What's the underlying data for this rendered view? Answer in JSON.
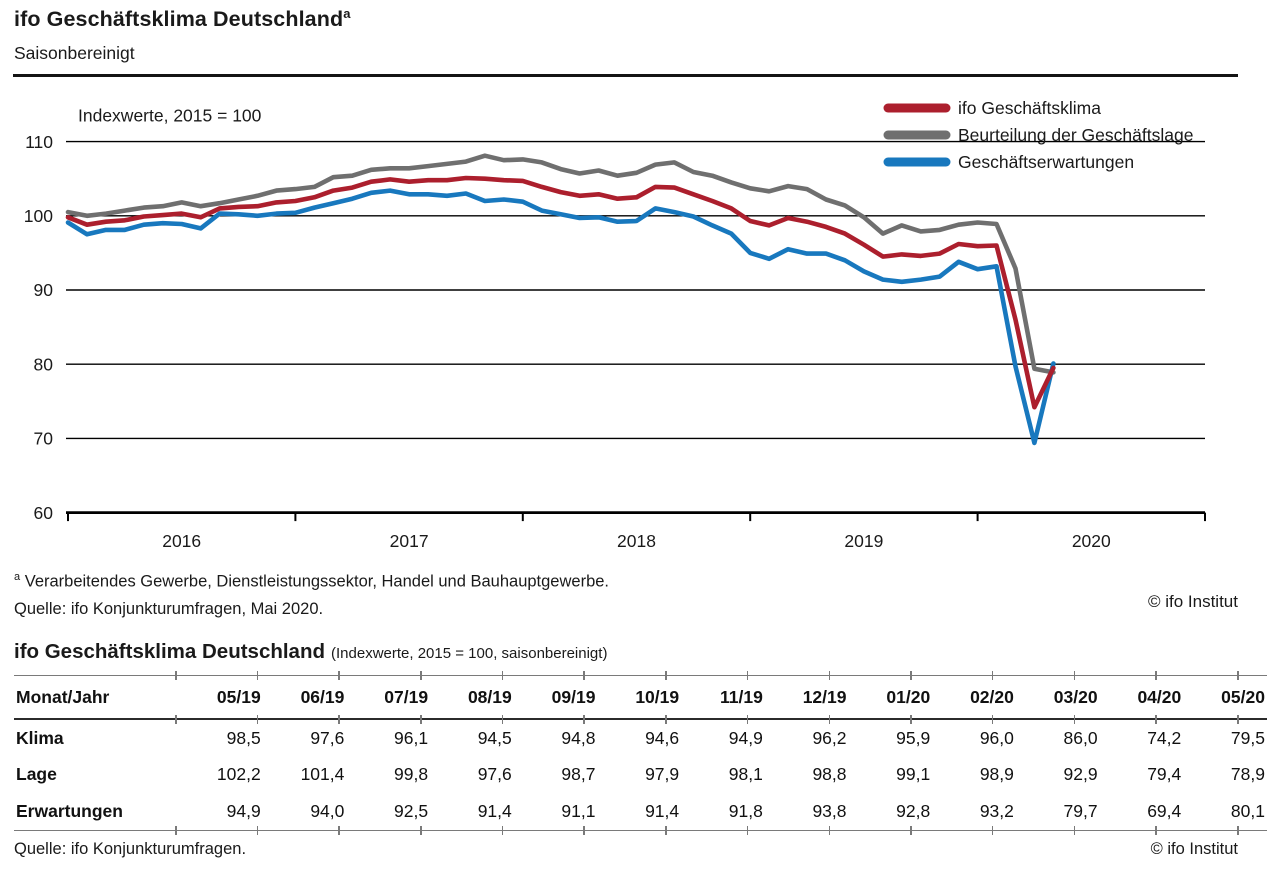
{
  "header": {
    "title": "ifo Geschäftsklima Deutschland",
    "title_superscript": "a",
    "subtitle": "Saisonbereinigt"
  },
  "chart": {
    "note": "Indexwerte, 2015 = 100",
    "y_ticks": [
      110,
      100,
      90,
      80,
      70,
      60
    ],
    "x_year_labels": [
      "2016",
      "2017",
      "2018",
      "2019",
      "2020"
    ],
    "legend": [
      {
        "label": "ifo Geschäftsklima",
        "color": "#ac1f2d"
      },
      {
        "label": "Beurteilung der Geschäftslage",
        "color": "#6f6f6f"
      },
      {
        "label": "Geschäftserwartungen",
        "color": "#1878be"
      }
    ],
    "axis_color": "#000000",
    "footnote_marker": "a",
    "footnote_text": "Verarbeitendes Gewerbe, Dienstleistungssektor, Handel und Bauhauptgewerbe.",
    "source": "Quelle: ifo Konjunkturumfragen, Mai 2020.",
    "copyright": "© ifo Institut"
  },
  "chart_data": {
    "type": "line",
    "title": "ifo Geschäftsklima Deutschland, saisonbereinigt",
    "ylabel": "Indexwerte, 2015 = 100",
    "ylim": [
      60,
      112
    ],
    "grid": "horizontal",
    "legend_position": "top-right",
    "x": [
      "2016-01",
      "2016-02",
      "2016-03",
      "2016-04",
      "2016-05",
      "2016-06",
      "2016-07",
      "2016-08",
      "2016-09",
      "2016-10",
      "2016-11",
      "2016-12",
      "2017-01",
      "2017-02",
      "2017-03",
      "2017-04",
      "2017-05",
      "2017-06",
      "2017-07",
      "2017-08",
      "2017-09",
      "2017-10",
      "2017-11",
      "2017-12",
      "2018-01",
      "2018-02",
      "2018-03",
      "2018-04",
      "2018-05",
      "2018-06",
      "2018-07",
      "2018-08",
      "2018-09",
      "2018-10",
      "2018-11",
      "2018-12",
      "2019-01",
      "2019-02",
      "2019-03",
      "2019-04",
      "2019-05",
      "2019-06",
      "2019-07",
      "2019-08",
      "2019-09",
      "2019-10",
      "2019-11",
      "2019-12",
      "2020-01",
      "2020-02",
      "2020-03",
      "2020-04",
      "2020-05"
    ],
    "series": [
      {
        "name": "ifo Geschäftsklima",
        "color": "#ac1f2d",
        "values": [
          99.8,
          98.8,
          99.2,
          99.4,
          99.9,
          100.1,
          100.3,
          99.8,
          101.0,
          101.2,
          101.3,
          101.8,
          102.0,
          102.5,
          103.4,
          103.8,
          104.6,
          104.9,
          104.6,
          104.8,
          104.8,
          105.1,
          105.0,
          104.8,
          104.7,
          103.9,
          103.2,
          102.7,
          102.9,
          102.3,
          102.5,
          103.9,
          103.8,
          102.9,
          102.0,
          101.0,
          99.3,
          98.7,
          99.7,
          99.2,
          98.5,
          97.6,
          96.1,
          94.5,
          94.8,
          94.6,
          94.9,
          96.2,
          95.9,
          96.0,
          86.0,
          74.2,
          79.5
        ]
      },
      {
        "name": "Beurteilung der Geschäftslage",
        "color": "#6f6f6f",
        "values": [
          100.5,
          100.0,
          100.3,
          100.7,
          101.1,
          101.3,
          101.8,
          101.3,
          101.7,
          102.2,
          102.7,
          103.4,
          103.6,
          103.9,
          105.2,
          105.4,
          106.2,
          106.4,
          106.4,
          106.7,
          107.0,
          107.3,
          108.1,
          107.5,
          107.6,
          107.2,
          106.3,
          105.7,
          106.1,
          105.4,
          105.8,
          106.9,
          107.2,
          105.9,
          105.4,
          104.5,
          103.7,
          103.3,
          104.0,
          103.6,
          102.2,
          101.4,
          99.8,
          97.6,
          98.7,
          97.9,
          98.1,
          98.8,
          99.1,
          98.9,
          92.9,
          79.4,
          78.9
        ]
      },
      {
        "name": "Geschäftserwartungen",
        "color": "#1878be",
        "values": [
          99.1,
          97.5,
          98.1,
          98.1,
          98.8,
          99.0,
          98.9,
          98.3,
          100.3,
          100.2,
          100.0,
          100.3,
          100.4,
          101.1,
          101.7,
          102.3,
          103.1,
          103.4,
          102.9,
          102.9,
          102.7,
          103.0,
          102.0,
          102.2,
          101.9,
          100.7,
          100.2,
          99.7,
          99.8,
          99.2,
          99.3,
          101.0,
          100.5,
          99.9,
          98.7,
          97.6,
          95.0,
          94.2,
          95.5,
          94.9,
          94.9,
          94.0,
          92.5,
          91.4,
          91.1,
          91.4,
          91.8,
          93.8,
          92.8,
          93.2,
          79.7,
          69.4,
          80.1
        ]
      }
    ]
  },
  "table_section": {
    "title": "ifo Geschäftsklima Deutschland",
    "note": "(Indexwerte, 2015 = 100, saisonbereinigt)",
    "header_label": "Monat/Jahr",
    "columns": [
      "05/19",
      "06/19",
      "07/19",
      "08/19",
      "09/19",
      "10/19",
      "11/19",
      "12/19",
      "01/20",
      "02/20",
      "03/20",
      "04/20",
      "05/20"
    ],
    "rows": [
      {
        "label": "Klima",
        "values": [
          "98,5",
          "97,6",
          "96,1",
          "94,5",
          "94,8",
          "94,6",
          "94,9",
          "96,2",
          "95,9",
          "96,0",
          "86,0",
          "74,2",
          "79,5"
        ]
      },
      {
        "label": "Lage",
        "values": [
          "102,2",
          "101,4",
          "99,8",
          "97,6",
          "98,7",
          "97,9",
          "98,1",
          "98,8",
          "99,1",
          "98,9",
          "92,9",
          "79,4",
          "78,9"
        ]
      },
      {
        "label": "Erwartungen",
        "values": [
          "94,9",
          "94,0",
          "92,5",
          "91,4",
          "91,1",
          "91,4",
          "91,8",
          "93,8",
          "92,8",
          "93,2",
          "79,7",
          "69,4",
          "80,1"
        ]
      }
    ]
  },
  "footer": {
    "source": "Quelle: ifo Konjunkturumfragen.",
    "copyright": "© ifo Institut"
  }
}
